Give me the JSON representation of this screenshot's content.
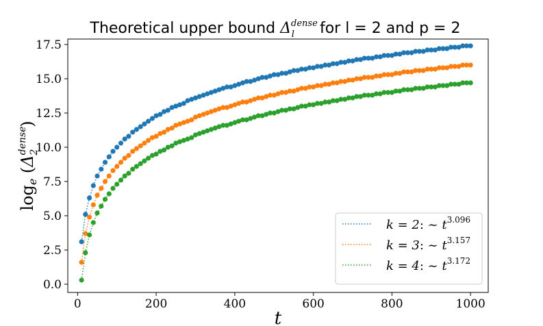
{
  "chart_data": {
    "type": "scatter",
    "title": {
      "prefix": "Theoretical upper bound ",
      "symbol": "Δ",
      "sup": "dense",
      "sub": "l",
      "suffix": " for l = 2 and p = 2"
    },
    "xlabel": "t",
    "ylabel": {
      "log": "log",
      "base": "e",
      "symbol": "Δ",
      "sub": "2",
      "sup": "dense"
    },
    "xlim": [
      -25,
      1045
    ],
    "ylim": [
      -0.6,
      17.9
    ],
    "xticks": [
      0,
      200,
      400,
      600,
      800,
      1000
    ],
    "yticks": [
      0.0,
      2.5,
      5.0,
      7.5,
      10.0,
      12.5,
      15.0,
      17.5
    ],
    "ytick_labels": [
      "0.0",
      "2.5",
      "5.0",
      "7.5",
      "10.0",
      "12.5",
      "15.0",
      "17.5"
    ],
    "grid": false,
    "legend_position": "lower-right",
    "x": [
      10,
      20,
      30,
      40,
      50,
      60,
      70,
      80,
      90,
      100,
      110,
      120,
      130,
      140,
      150,
      160,
      170,
      180,
      190,
      200,
      210,
      220,
      230,
      240,
      250,
      260,
      270,
      280,
      290,
      300,
      310,
      320,
      330,
      340,
      350,
      360,
      370,
      380,
      390,
      400,
      410,
      420,
      430,
      440,
      450,
      460,
      470,
      480,
      490,
      500,
      510,
      520,
      530,
      540,
      550,
      560,
      570,
      580,
      590,
      600,
      610,
      620,
      630,
      640,
      650,
      660,
      670,
      680,
      690,
      700,
      710,
      720,
      730,
      740,
      750,
      760,
      770,
      780,
      790,
      800,
      810,
      820,
      830,
      840,
      850,
      860,
      870,
      880,
      890,
      900,
      910,
      920,
      930,
      940,
      950,
      960,
      970,
      980,
      990,
      1000
    ],
    "series": [
      {
        "name": "k = 2",
        "exponent": "3.096",
        "color": "#1f77b4",
        "values": [
          3.1,
          5.1,
          6.3,
          7.2,
          7.9,
          8.4,
          8.9,
          9.3,
          9.7,
          10.0,
          10.3,
          10.6,
          10.8,
          11.1,
          11.3,
          11.5,
          11.7,
          11.9,
          12.1,
          12.3,
          12.4,
          12.6,
          12.7,
          12.9,
          13.0,
          13.1,
          13.2,
          13.4,
          13.5,
          13.6,
          13.7,
          13.8,
          13.9,
          14.0,
          14.1,
          14.2,
          14.3,
          14.4,
          14.4,
          14.5,
          14.6,
          14.7,
          14.8,
          14.8,
          14.9,
          15.0,
          15.1,
          15.1,
          15.2,
          15.3,
          15.3,
          15.4,
          15.4,
          15.5,
          15.6,
          15.6,
          15.7,
          15.7,
          15.8,
          15.8,
          15.9,
          15.9,
          16.0,
          16.0,
          16.1,
          16.1,
          16.2,
          16.2,
          16.3,
          16.3,
          16.4,
          16.4,
          16.5,
          16.5,
          16.5,
          16.6,
          16.6,
          16.7,
          16.7,
          16.7,
          16.8,
          16.8,
          16.9,
          16.9,
          16.9,
          17.0,
          17.0,
          17.0,
          17.1,
          17.1,
          17.1,
          17.2,
          17.2,
          17.2,
          17.3,
          17.3,
          17.3,
          17.4,
          17.4,
          17.4
        ]
      },
      {
        "name": "k = 3",
        "exponent": "3.157",
        "color": "#ff7f0e",
        "values": [
          1.6,
          3.7,
          4.9,
          5.8,
          6.5,
          7.0,
          7.5,
          7.9,
          8.3,
          8.6,
          8.9,
          9.2,
          9.4,
          9.7,
          9.9,
          10.1,
          10.3,
          10.5,
          10.7,
          10.8,
          11.0,
          11.1,
          11.3,
          11.4,
          11.6,
          11.7,
          11.8,
          11.9,
          12.0,
          12.2,
          12.3,
          12.4,
          12.5,
          12.6,
          12.7,
          12.8,
          12.9,
          12.9,
          13.0,
          13.1,
          13.2,
          13.3,
          13.3,
          13.4,
          13.5,
          13.6,
          13.6,
          13.7,
          13.8,
          13.8,
          13.9,
          14.0,
          14.0,
          14.1,
          14.1,
          14.2,
          14.3,
          14.3,
          14.4,
          14.4,
          14.5,
          14.5,
          14.6,
          14.6,
          14.7,
          14.7,
          14.8,
          14.8,
          14.9,
          14.9,
          15.0,
          15.0,
          15.1,
          15.1,
          15.1,
          15.2,
          15.2,
          15.3,
          15.3,
          15.3,
          15.4,
          15.4,
          15.5,
          15.5,
          15.5,
          15.6,
          15.6,
          15.6,
          15.7,
          15.7,
          15.7,
          15.8,
          15.8,
          15.8,
          15.9,
          15.9,
          15.9,
          16.0,
          16.0,
          16.0
        ]
      },
      {
        "name": "k = 4",
        "exponent": "3.172",
        "color": "#2ca02c",
        "values": [
          0.3,
          2.3,
          3.6,
          4.5,
          5.2,
          5.7,
          6.2,
          6.6,
          7.0,
          7.3,
          7.6,
          7.9,
          8.1,
          8.4,
          8.6,
          8.8,
          9.0,
          9.2,
          9.4,
          9.5,
          9.7,
          9.8,
          10.0,
          10.1,
          10.3,
          10.4,
          10.5,
          10.6,
          10.7,
          10.9,
          11.0,
          11.1,
          11.2,
          11.3,
          11.4,
          11.5,
          11.6,
          11.6,
          11.7,
          11.8,
          11.9,
          12.0,
          12.0,
          12.1,
          12.2,
          12.3,
          12.3,
          12.4,
          12.5,
          12.5,
          12.6,
          12.7,
          12.7,
          12.8,
          12.8,
          12.9,
          13.0,
          13.0,
          13.1,
          13.1,
          13.2,
          13.2,
          13.3,
          13.3,
          13.4,
          13.4,
          13.5,
          13.5,
          13.6,
          13.6,
          13.7,
          13.7,
          13.8,
          13.8,
          13.8,
          13.9,
          13.9,
          14.0,
          14.0,
          14.0,
          14.1,
          14.1,
          14.2,
          14.2,
          14.2,
          14.3,
          14.3,
          14.3,
          14.4,
          14.4,
          14.4,
          14.5,
          14.5,
          14.5,
          14.6,
          14.6,
          14.6,
          14.7,
          14.7,
          14.7
        ]
      }
    ]
  }
}
